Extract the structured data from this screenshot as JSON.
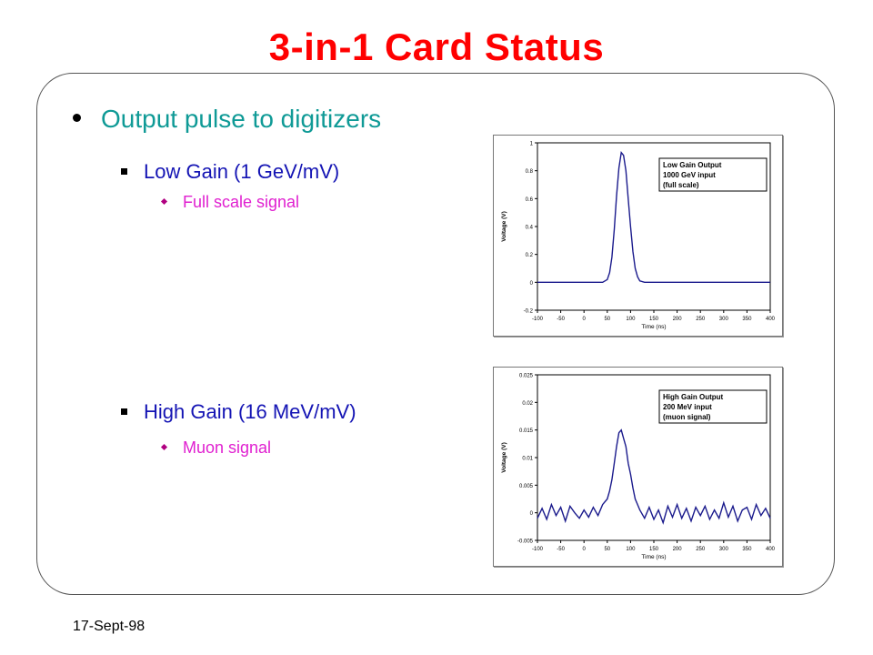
{
  "slide": {
    "title": "3-in-1 Card Status",
    "footer_date": "17-Sept-98",
    "bullets": {
      "main": "Output pulse to digitizers",
      "low_gain": "Low Gain (1 GeV/mV)",
      "low_gain_sub": "Full scale signal",
      "high_gain": "High Gain (16 MeV/mV)",
      "high_gain_sub": "Muon signal"
    }
  },
  "colors": {
    "title": "#ff0000",
    "level1": "#0f9a96",
    "level2": "#1414b4",
    "level3": "#e020d0",
    "trace": "#1a1a8c"
  },
  "chart_data": [
    {
      "type": "line",
      "title": "",
      "xlabel": "Time (ns)",
      "ylabel": "Voltage (V)",
      "xlim": [
        -100,
        400
      ],
      "ylim": [
        -0.2,
        1
      ],
      "xticks": [
        -100,
        -50,
        0,
        50,
        100,
        150,
        200,
        250,
        300,
        350,
        400
      ],
      "yticks": [
        -0.2,
        0,
        0.2,
        0.4,
        0.6,
        0.8,
        1
      ],
      "ytick_labels": [
        "-0.2",
        "0",
        "0.2",
        "0.4",
        "0.6",
        "0.8",
        "1"
      ],
      "grid": false,
      "annotation": [
        "Low Gain Output",
        "1000 GeV input",
        "(full scale)"
      ],
      "annotation_position": "top-right",
      "series": [
        {
          "x": [
            -100,
            -80,
            -60,
            -40,
            -20,
            0,
            20,
            40,
            50,
            55,
            60,
            65,
            70,
            75,
            80,
            85,
            90,
            95,
            100,
            105,
            110,
            115,
            120,
            130,
            140,
            160,
            200,
            250,
            300,
            350,
            400
          ],
          "values": [
            0,
            0,
            0,
            0,
            0,
            0,
            0,
            0,
            0.02,
            0.07,
            0.18,
            0.38,
            0.62,
            0.82,
            0.93,
            0.91,
            0.8,
            0.6,
            0.4,
            0.22,
            0.1,
            0.04,
            0.01,
            0,
            0,
            0,
            0,
            0,
            0,
            0,
            0
          ]
        }
      ]
    },
    {
      "type": "line",
      "title": "",
      "xlabel": "Time (ns)",
      "ylabel": "Voltage (V)",
      "xlim": [
        -100,
        400
      ],
      "ylim": [
        -0.005,
        0.025
      ],
      "xticks": [
        -100,
        -50,
        0,
        50,
        100,
        150,
        200,
        250,
        300,
        350,
        400
      ],
      "yticks": [
        -0.005,
        0,
        0.005,
        0.01,
        0.015,
        0.02,
        0.025
      ],
      "ytick_labels": [
        "-0.005",
        "0",
        "0.005",
        "0.01",
        "0.015",
        "0.02",
        "0.025"
      ],
      "grid": false,
      "annotation": [
        "High Gain Output",
        "200 MeV input",
        "(muon signal)"
      ],
      "annotation_position": "top-right",
      "series": [
        {
          "x": [
            -100,
            -90,
            -80,
            -70,
            -60,
            -50,
            -40,
            -30,
            -20,
            -10,
            0,
            10,
            20,
            30,
            40,
            50,
            55,
            60,
            65,
            70,
            75,
            80,
            85,
            90,
            95,
            100,
            105,
            110,
            115,
            120,
            130,
            140,
            150,
            160,
            170,
            180,
            190,
            200,
            210,
            220,
            230,
            240,
            250,
            260,
            270,
            280,
            290,
            300,
            310,
            320,
            330,
            340,
            350,
            360,
            370,
            380,
            390,
            400
          ],
          "values": [
            -0.001,
            0.0008,
            -0.0012,
            0.0015,
            -0.0005,
            0.001,
            -0.0015,
            0.0012,
            0,
            -0.001,
            0.0005,
            -0.0008,
            0.001,
            -0.0005,
            0.0015,
            0.0025,
            0.004,
            0.006,
            0.009,
            0.012,
            0.0145,
            0.015,
            0.0135,
            0.012,
            0.009,
            0.007,
            0.0045,
            0.0025,
            0.0015,
            0.0005,
            -0.001,
            0.001,
            -0.0012,
            0.0005,
            -0.0018,
            0.0012,
            -0.0008,
            0.0015,
            -0.001,
            0.0008,
            -0.0015,
            0.001,
            -0.0005,
            0.0012,
            -0.0012,
            0.0005,
            -0.001,
            0.0018,
            -0.0008,
            0.0012,
            -0.0015,
            0.0005,
            0.001,
            -0.0012,
            0.0015,
            -0.0005,
            0.0008,
            -0.001
          ]
        }
      ]
    }
  ]
}
